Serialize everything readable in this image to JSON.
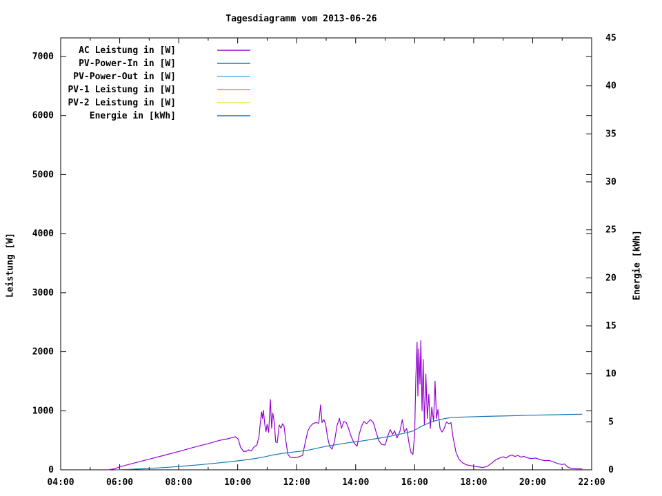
{
  "title": "Tagesdiagramm vom 2013-06-26",
  "chart_data": {
    "type": "line",
    "title": "Tagesdiagramm vom 2013-06-26",
    "grid": false,
    "legend_position": "top-left-inside",
    "x_axis": {
      "kind": "time-of-day",
      "range_hours": [
        4,
        22
      ],
      "major_tick_every_hours": 2,
      "minor_tick_every_hours": 1,
      "tick_labels": [
        "04:00",
        "06:00",
        "08:00",
        "10:00",
        "12:00",
        "14:00",
        "16:00",
        "18:00",
        "20:00",
        "22:00"
      ]
    },
    "y_left_axis": {
      "label": "Leistung [W]",
      "range": [
        0,
        7315
      ],
      "tick_values": [
        0,
        1000,
        2000,
        3000,
        4000,
        5000,
        6000,
        7000
      ]
    },
    "y_right_axis": {
      "label": "Energie [kWh]",
      "range": [
        0,
        45
      ],
      "tick_values": [
        0,
        5,
        10,
        15,
        20,
        25,
        30,
        35,
        40,
        45
      ]
    },
    "legend": [
      {
        "label": "AC Leistung in [W]",
        "color": "#9400d3"
      },
      {
        "label": "PV-Power-In in [W]",
        "color": "#009180"
      },
      {
        "label": "PV-Power-Out in [W]",
        "color": "#56b4e9"
      },
      {
        "label": "PV-1 Leistung in [W]",
        "color": "#e09c00"
      },
      {
        "label": "PV-2 Leistung in [W]",
        "color": "#ece64e"
      },
      {
        "label": "Energie in [kWh]",
        "color": "#1874b4"
      }
    ],
    "series": [
      {
        "name": "AC Leistung in [W]",
        "axis": "left",
        "color": "#9400d3",
        "points": [
          [
            5.62,
            0
          ],
          [
            5.8,
            15
          ],
          [
            6.0,
            50
          ],
          [
            6.5,
            115
          ],
          [
            7.0,
            180
          ],
          [
            7.5,
            245
          ],
          [
            8.0,
            310
          ],
          [
            8.5,
            380
          ],
          [
            9.0,
            445
          ],
          [
            9.4,
            500
          ],
          [
            9.7,
            530
          ],
          [
            9.92,
            560
          ],
          [
            10.02,
            520
          ],
          [
            10.1,
            380
          ],
          [
            10.2,
            310
          ],
          [
            10.3,
            315
          ],
          [
            10.38,
            340
          ],
          [
            10.46,
            320
          ],
          [
            10.55,
            385
          ],
          [
            10.65,
            420
          ],
          [
            10.72,
            560
          ],
          [
            10.78,
            850
          ],
          [
            10.81,
            980
          ],
          [
            10.84,
            870
          ],
          [
            10.87,
            1010
          ],
          [
            10.92,
            770
          ],
          [
            10.96,
            645
          ],
          [
            11.0,
            770
          ],
          [
            11.05,
            635
          ],
          [
            11.11,
            1190
          ],
          [
            11.15,
            705
          ],
          [
            11.19,
            960
          ],
          [
            11.24,
            810
          ],
          [
            11.29,
            470
          ],
          [
            11.34,
            460
          ],
          [
            11.41,
            760
          ],
          [
            11.47,
            705
          ],
          [
            11.52,
            780
          ],
          [
            11.57,
            745
          ],
          [
            11.63,
            500
          ],
          [
            11.7,
            265
          ],
          [
            11.78,
            215
          ],
          [
            11.9,
            205
          ],
          [
            12.0,
            210
          ],
          [
            12.1,
            225
          ],
          [
            12.2,
            245
          ],
          [
            12.3,
            490
          ],
          [
            12.38,
            660
          ],
          [
            12.46,
            735
          ],
          [
            12.55,
            780
          ],
          [
            12.65,
            800
          ],
          [
            12.75,
            790
          ],
          [
            12.81,
            1100
          ],
          [
            12.86,
            800
          ],
          [
            12.92,
            850
          ],
          [
            12.98,
            780
          ],
          [
            13.05,
            545
          ],
          [
            13.12,
            400
          ],
          [
            13.2,
            350
          ],
          [
            13.28,
            480
          ],
          [
            13.37,
            750
          ],
          [
            13.45,
            870
          ],
          [
            13.52,
            705
          ],
          [
            13.6,
            820
          ],
          [
            13.68,
            800
          ],
          [
            13.76,
            700
          ],
          [
            13.85,
            560
          ],
          [
            13.95,
            450
          ],
          [
            14.05,
            400
          ],
          [
            14.12,
            600
          ],
          [
            14.2,
            740
          ],
          [
            14.28,
            820
          ],
          [
            14.37,
            780
          ],
          [
            14.5,
            850
          ],
          [
            14.6,
            800
          ],
          [
            14.68,
            660
          ],
          [
            14.78,
            500
          ],
          [
            14.88,
            430
          ],
          [
            15.0,
            420
          ],
          [
            15.08,
            560
          ],
          [
            15.17,
            680
          ],
          [
            15.25,
            600
          ],
          [
            15.32,
            660
          ],
          [
            15.4,
            540
          ],
          [
            15.5,
            650
          ],
          [
            15.58,
            850
          ],
          [
            15.65,
            640
          ],
          [
            15.73,
            700
          ],
          [
            15.82,
            420
          ],
          [
            15.88,
            290
          ],
          [
            15.94,
            260
          ],
          [
            16.0,
            600
          ],
          [
            16.04,
            1550
          ],
          [
            16.08,
            2160
          ],
          [
            16.11,
            1250
          ],
          [
            16.14,
            2050
          ],
          [
            16.18,
            1450
          ],
          [
            16.21,
            2190
          ],
          [
            16.25,
            1000
          ],
          [
            16.29,
            1870
          ],
          [
            16.33,
            760
          ],
          [
            16.38,
            1620
          ],
          [
            16.43,
            870
          ],
          [
            16.48,
            1280
          ],
          [
            16.53,
            700
          ],
          [
            16.58,
            1060
          ],
          [
            16.64,
            820
          ],
          [
            16.69,
            1500
          ],
          [
            16.74,
            870
          ],
          [
            16.79,
            1020
          ],
          [
            16.86,
            700
          ],
          [
            16.93,
            640
          ],
          [
            17.0,
            700
          ],
          [
            17.08,
            810
          ],
          [
            17.16,
            780
          ],
          [
            17.23,
            800
          ],
          [
            17.3,
            560
          ],
          [
            17.4,
            300
          ],
          [
            17.5,
            180
          ],
          [
            17.62,
            120
          ],
          [
            17.75,
            85
          ],
          [
            17.9,
            70
          ],
          [
            18.1,
            55
          ],
          [
            18.3,
            40
          ],
          [
            18.45,
            55
          ],
          [
            18.6,
            110
          ],
          [
            18.75,
            170
          ],
          [
            18.9,
            205
          ],
          [
            19.0,
            220
          ],
          [
            19.1,
            200
          ],
          [
            19.2,
            235
          ],
          [
            19.3,
            250
          ],
          [
            19.4,
            225
          ],
          [
            19.5,
            245
          ],
          [
            19.6,
            215
          ],
          [
            19.7,
            230
          ],
          [
            19.8,
            205
          ],
          [
            19.95,
            190
          ],
          [
            20.1,
            200
          ],
          [
            20.25,
            175
          ],
          [
            20.4,
            155
          ],
          [
            20.55,
            160
          ],
          [
            20.7,
            135
          ],
          [
            20.85,
            105
          ],
          [
            21.0,
            90
          ],
          [
            21.08,
            100
          ],
          [
            21.18,
            50
          ],
          [
            21.3,
            25
          ],
          [
            21.45,
            18
          ],
          [
            21.67,
            15
          ]
        ]
      },
      {
        "name": "PV-Power-In in [W]",
        "axis": "left",
        "color": "#009180",
        "points": []
      },
      {
        "name": "PV-Power-Out in [W]",
        "axis": "left",
        "color": "#56b4e9",
        "points": []
      },
      {
        "name": "PV-1 Leistung in [W]",
        "axis": "left",
        "color": "#e09c00",
        "points": []
      },
      {
        "name": "PV-2 Leistung in [W]",
        "axis": "left",
        "color": "#ece64e",
        "points": []
      },
      {
        "name": "Energie in [kWh]",
        "axis": "right",
        "color": "#1874b4",
        "points": [
          [
            5.9,
            0
          ],
          [
            6.3,
            0.04
          ],
          [
            6.8,
            0.11
          ],
          [
            7.3,
            0.2
          ],
          [
            7.8,
            0.3
          ],
          [
            8.3,
            0.42
          ],
          [
            8.8,
            0.55
          ],
          [
            9.3,
            0.7
          ],
          [
            9.7,
            0.83
          ],
          [
            10.0,
            0.93
          ],
          [
            10.3,
            1.05
          ],
          [
            10.6,
            1.18
          ],
          [
            10.9,
            1.35
          ],
          [
            11.2,
            1.55
          ],
          [
            11.5,
            1.7
          ],
          [
            11.8,
            1.82
          ],
          [
            12.1,
            1.92
          ],
          [
            12.4,
            2.05
          ],
          [
            12.7,
            2.25
          ],
          [
            13.0,
            2.45
          ],
          [
            13.3,
            2.6
          ],
          [
            13.6,
            2.75
          ],
          [
            13.9,
            2.88
          ],
          [
            14.2,
            3.0
          ],
          [
            14.5,
            3.15
          ],
          [
            14.8,
            3.3
          ],
          [
            15.1,
            3.45
          ],
          [
            15.4,
            3.65
          ],
          [
            15.7,
            3.85
          ],
          [
            15.95,
            4.05
          ],
          [
            16.1,
            4.3
          ],
          [
            16.2,
            4.5
          ],
          [
            16.35,
            4.7
          ],
          [
            16.5,
            4.9
          ],
          [
            16.65,
            5.05
          ],
          [
            16.8,
            5.2
          ],
          [
            16.95,
            5.3
          ],
          [
            17.1,
            5.38
          ],
          [
            17.25,
            5.44
          ],
          [
            17.5,
            5.48
          ],
          [
            17.8,
            5.51
          ],
          [
            18.1,
            5.54
          ],
          [
            18.45,
            5.57
          ],
          [
            18.8,
            5.6
          ],
          [
            19.2,
            5.63
          ],
          [
            19.6,
            5.66
          ],
          [
            20.0,
            5.69
          ],
          [
            20.4,
            5.71
          ],
          [
            20.85,
            5.74
          ],
          [
            21.2,
            5.77
          ],
          [
            21.67,
            5.79
          ]
        ]
      }
    ]
  }
}
